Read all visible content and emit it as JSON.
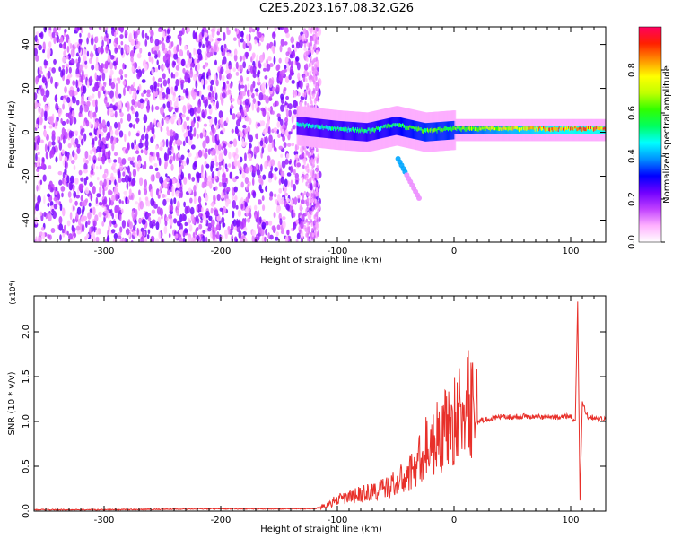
{
  "title": "C2E5.2023.167.08.32.G26",
  "chart_data": [
    {
      "type": "heatmap",
      "xlabel": "Height of straight line (km)",
      "ylabel": "Frequency (Hz)",
      "xlim": [
        -360,
        130
      ],
      "ylim": [
        -50,
        48
      ],
      "xticks": [
        -300,
        -200,
        -100,
        0,
        100
      ],
      "yticks": [
        -40,
        -20,
        0,
        20,
        40
      ],
      "colorbar": {
        "label": "Normalized spectral amplitude",
        "range": [
          0.0,
          1.0
        ],
        "ticks": [
          "0.0",
          "0.2",
          "0.4",
          "0.6",
          "0.8"
        ],
        "colors": [
          "#ffffff",
          "#ffb0ff",
          "#c040ff",
          "#7000ff",
          "#0000ff",
          "#0090ff",
          "#00ffff",
          "#00ff60",
          "#30ff00",
          "#c0ff00",
          "#ffff00",
          "#ff9000",
          "#ff2000",
          "#ff0060"
        ]
      },
      "noise_region": {
        "x_range": [
          -360,
          -115
        ],
        "amplitude": 0.2
      },
      "signal_band": [
        {
          "x": -135,
          "freq": 3,
          "amplitude": 0.45
        },
        {
          "x": -100,
          "freq": 1,
          "amplitude": 0.5
        },
        {
          "x": -75,
          "freq": 0,
          "amplitude": 0.5
        },
        {
          "x": -50,
          "freq": 3,
          "amplitude": 0.55
        },
        {
          "x": -25,
          "freq": 0,
          "amplitude": 0.6
        },
        {
          "x": 0,
          "freq": 1,
          "amplitude": 0.6
        },
        {
          "x": 50,
          "freq": 1,
          "amplitude": 0.75
        },
        {
          "x": 100,
          "freq": 1,
          "amplitude": 0.85
        },
        {
          "x": 130,
          "freq": 1,
          "amplitude": 0.85
        }
      ],
      "secondary_feature": {
        "x_range": [
          -48,
          -30
        ],
        "freq_range": [
          -12,
          -30
        ],
        "amplitude": 0.4
      }
    },
    {
      "type": "line",
      "xlabel": "Height of straight line (km)",
      "ylabel": "SNR (10 * v/v)",
      "y_multiplier": "(x10⁴)",
      "xlim": [
        -360,
        130
      ],
      "ylim": [
        0,
        2.4
      ],
      "xticks": [
        -300,
        -200,
        -100,
        0,
        100
      ],
      "yticks": [
        0.0,
        0.5,
        1.0,
        1.5,
        2.0
      ],
      "series": [
        {
          "color": "#e8302a",
          "x": [
            -360,
            -300,
            -200,
            -120,
            -110,
            -100,
            -90,
            -80,
            -70,
            -60,
            -50,
            -40,
            -30,
            -25,
            -20,
            -15,
            -10,
            -5,
            0,
            5,
            10,
            20,
            30,
            40,
            50,
            60,
            70,
            80,
            90,
            95,
            100,
            104,
            106,
            108,
            110,
            115,
            120,
            125,
            130
          ],
          "values": [
            0.01,
            0.01,
            0.02,
            0.02,
            0.05,
            0.1,
            0.12,
            0.15,
            0.17,
            0.2,
            0.25,
            0.3,
            0.45,
            0.55,
            0.6,
            0.65,
            0.7,
            0.75,
            0.8,
            0.85,
            0.93,
            1.0,
            1.03,
            1.05,
            1.05,
            1.06,
            1.05,
            1.05,
            1.05,
            1.06,
            1.05,
            1.0,
            2.35,
            0.1,
            1.2,
            1.05,
            1.05,
            1.03,
            1.02
          ]
        }
      ]
    }
  ]
}
